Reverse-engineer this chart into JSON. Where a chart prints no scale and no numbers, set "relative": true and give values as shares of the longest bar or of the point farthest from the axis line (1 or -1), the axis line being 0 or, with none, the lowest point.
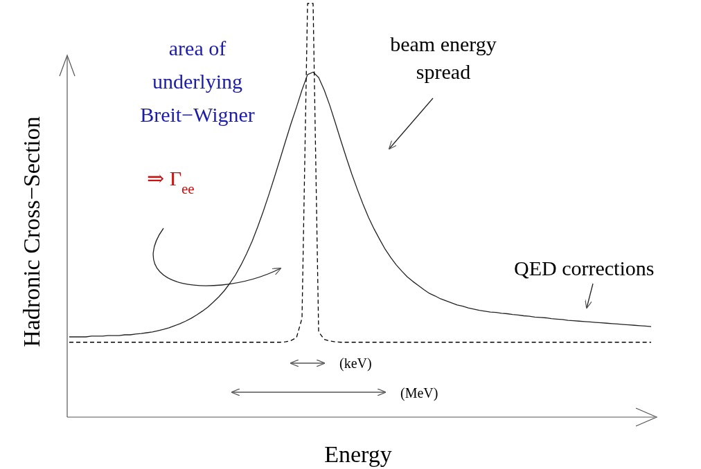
{
  "chart_data": {
    "type": "line",
    "relative": true,
    "xlabel": "Energy",
    "ylabel": "Hadronic Cross−Section",
    "categories": [
      null,
      null,
      null,
      null,
      null,
      null,
      null,
      null,
      null,
      null,
      null,
      null,
      null,
      null,
      null,
      null,
      null,
      null,
      null,
      null,
      null,
      null,
      null,
      null,
      null,
      null,
      null,
      null,
      null,
      null,
      null,
      null,
      null,
      null,
      null,
      null,
      null,
      null,
      null,
      null,
      null,
      null,
      null,
      null,
      null,
      null,
      null,
      null,
      null,
      null,
      null,
      null,
      null,
      null,
      null,
      null,
      null,
      null,
      null,
      null,
      null,
      null,
      null,
      null,
      null,
      null,
      null,
      null,
      null,
      null,
      null,
      null,
      null,
      null,
      null,
      null,
      null,
      null,
      null,
      null,
      null,
      null,
      null,
      null,
      null,
      null,
      null,
      null,
      null,
      null,
      null,
      null,
      null,
      null,
      null,
      null,
      null,
      null,
      null,
      null,
      null,
      null,
      null,
      null,
      null,
      null
    ],
    "series": [
      {
        "color": "#222222",
        "line_style": "solid",
        "values": [
          0.194,
          0.194,
          0.194,
          0.194,
          0.196,
          0.196,
          0.196,
          0.197,
          0.197,
          0.197,
          0.199,
          0.199,
          0.201,
          0.202,
          0.204,
          0.206,
          0.209,
          0.212,
          0.216,
          0.221,
          0.226,
          0.232,
          0.239,
          0.247,
          0.256,
          0.266,
          0.278,
          0.291,
          0.306,
          0.324,
          0.344,
          0.368,
          0.395,
          0.425,
          0.46,
          0.497,
          0.537,
          0.579,
          0.622,
          0.666,
          0.709,
          0.749,
          0.791,
          0.828,
          0.834,
          0.821,
          0.791,
          0.754,
          0.712,
          0.669,
          0.627,
          0.587,
          0.55,
          0.515,
          0.483,
          0.455,
          0.43,
          0.406,
          0.386,
          0.368,
          0.353,
          0.339,
          0.328,
          0.318,
          0.308,
          0.299,
          0.293,
          0.286,
          0.281,
          0.276,
          0.271,
          0.268,
          0.264,
          0.261,
          0.258,
          0.256,
          0.254,
          0.253,
          0.251,
          0.25,
          0.248,
          0.247,
          0.245,
          0.244,
          0.242,
          0.241,
          0.24,
          0.238,
          0.237,
          0.236,
          0.234,
          0.233,
          0.232,
          0.231,
          0.23,
          0.229,
          0.228,
          0.227,
          0.226,
          0.225,
          0.224,
          0.223,
          0.222,
          0.221,
          0.22,
          0.219
        ]
      },
      {
        "color": "#000000",
        "line_style": "dashed",
        "values": [
          0.181,
          0.181,
          0.181,
          0.181,
          0.181,
          0.181,
          0.181,
          0.181,
          0.181,
          0.181,
          0.181,
          0.181,
          0.181,
          0.181,
          0.181,
          0.181,
          0.181,
          0.181,
          0.181,
          0.181,
          0.181,
          0.181,
          0.181,
          0.181,
          0.181,
          0.181,
          0.181,
          0.181,
          0.181,
          0.181,
          0.181,
          0.181,
          0.181,
          0.181,
          0.181,
          0.181,
          0.181,
          0.181,
          0.181,
          0.182,
          0.185,
          0.192,
          0.239,
          1,
          1,
          0.206,
          0.188,
          0.184,
          0.182,
          0.181,
          0.181,
          0.181,
          0.181,
          0.181,
          0.181,
          0.181,
          0.181,
          0.181,
          0.181,
          0.181,
          0.181,
          0.181,
          0.181,
          0.181,
          0.181,
          0.181,
          0.181,
          0.181,
          0.181,
          0.181,
          0.181,
          0.181,
          0.181,
          0.181,
          0.181,
          0.181,
          0.181,
          0.181,
          0.181,
          0.181,
          0.181,
          0.181,
          0.181,
          0.181,
          0.181,
          0.181,
          0.181,
          0.181,
          0.181,
          0.181,
          0.181,
          0.181,
          0.181,
          0.181,
          0.181,
          0.181,
          0.181,
          0.181,
          0.181,
          0.181,
          0.181,
          0.181,
          0.181,
          0.181,
          0.181,
          0.181
        ]
      }
    ],
    "marker": "none",
    "grid": false,
    "annotations": [
      "area of\nunderlying\nBreit−Wigner",
      "⇒ Γ$_{ee}$",
      "beam energy\nspread",
      "QED corrections",
      "(keV)",
      "(MeV)"
    ]
  }
}
